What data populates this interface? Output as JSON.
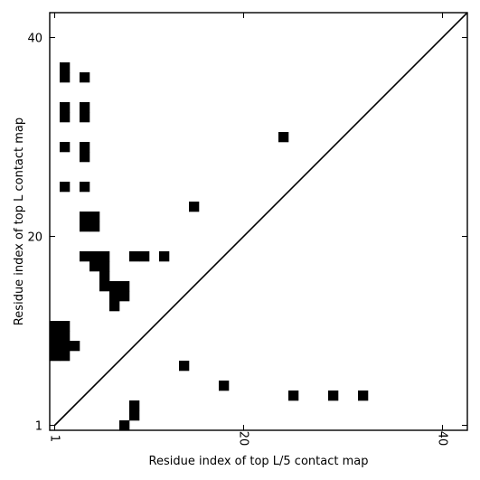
{
  "chart_data": {
    "type": "heatmap",
    "xlabel": "Residue index of top L/5 contact map",
    "ylabel": "Residue index of top L contact map",
    "xlim": [
      0.5,
      42.5
    ],
    "ylim": [
      0.5,
      42.5
    ],
    "x_ticks": [
      {
        "value": 1,
        "label": "1"
      },
      {
        "value": 20,
        "label": "20"
      },
      {
        "value": 40,
        "label": "40"
      }
    ],
    "y_ticks": [
      {
        "value": 1,
        "label": "1"
      },
      {
        "value": 20,
        "label": "20"
      },
      {
        "value": 40,
        "label": "40"
      }
    ],
    "diagonal": {
      "from": [
        1,
        1
      ],
      "to": [
        42.5,
        42.5
      ]
    },
    "cell_color": "#000000",
    "line_color": "#000000",
    "top_L_contacts": [
      [
        2,
        37
      ],
      [
        2,
        36
      ],
      [
        4,
        36
      ],
      [
        2,
        33
      ],
      [
        2,
        32
      ],
      [
        4,
        33
      ],
      [
        4,
        32
      ],
      [
        2,
        29
      ],
      [
        4,
        29
      ],
      [
        4,
        28
      ],
      [
        2,
        25
      ],
      [
        4,
        25
      ],
      [
        4,
        22
      ],
      [
        5,
        22
      ],
      [
        4,
        21
      ],
      [
        5,
        21
      ],
      [
        4,
        18
      ],
      [
        5,
        18
      ],
      [
        6,
        18
      ],
      [
        5,
        17
      ],
      [
        6,
        17
      ],
      [
        6,
        16
      ],
      [
        6,
        15
      ],
      [
        7,
        15
      ],
      [
        8,
        15
      ],
      [
        7,
        14
      ],
      [
        8,
        14
      ],
      [
        7,
        13
      ],
      [
        9,
        18
      ],
      [
        10,
        18
      ],
      [
        12,
        18
      ],
      [
        15,
        23
      ],
      [
        24,
        30
      ],
      [
        1,
        11
      ],
      [
        2,
        11
      ],
      [
        1,
        10
      ],
      [
        2,
        10
      ],
      [
        1,
        9
      ],
      [
        2,
        9
      ],
      [
        3,
        9
      ],
      [
        1,
        8
      ],
      [
        2,
        8
      ]
    ],
    "top_L5_contacts": [
      [
        14,
        7
      ],
      [
        18,
        5
      ],
      [
        25,
        4
      ],
      [
        29,
        4
      ],
      [
        32,
        4
      ],
      [
        9,
        3
      ],
      [
        9,
        2
      ],
      [
        8,
        1
      ]
    ]
  }
}
